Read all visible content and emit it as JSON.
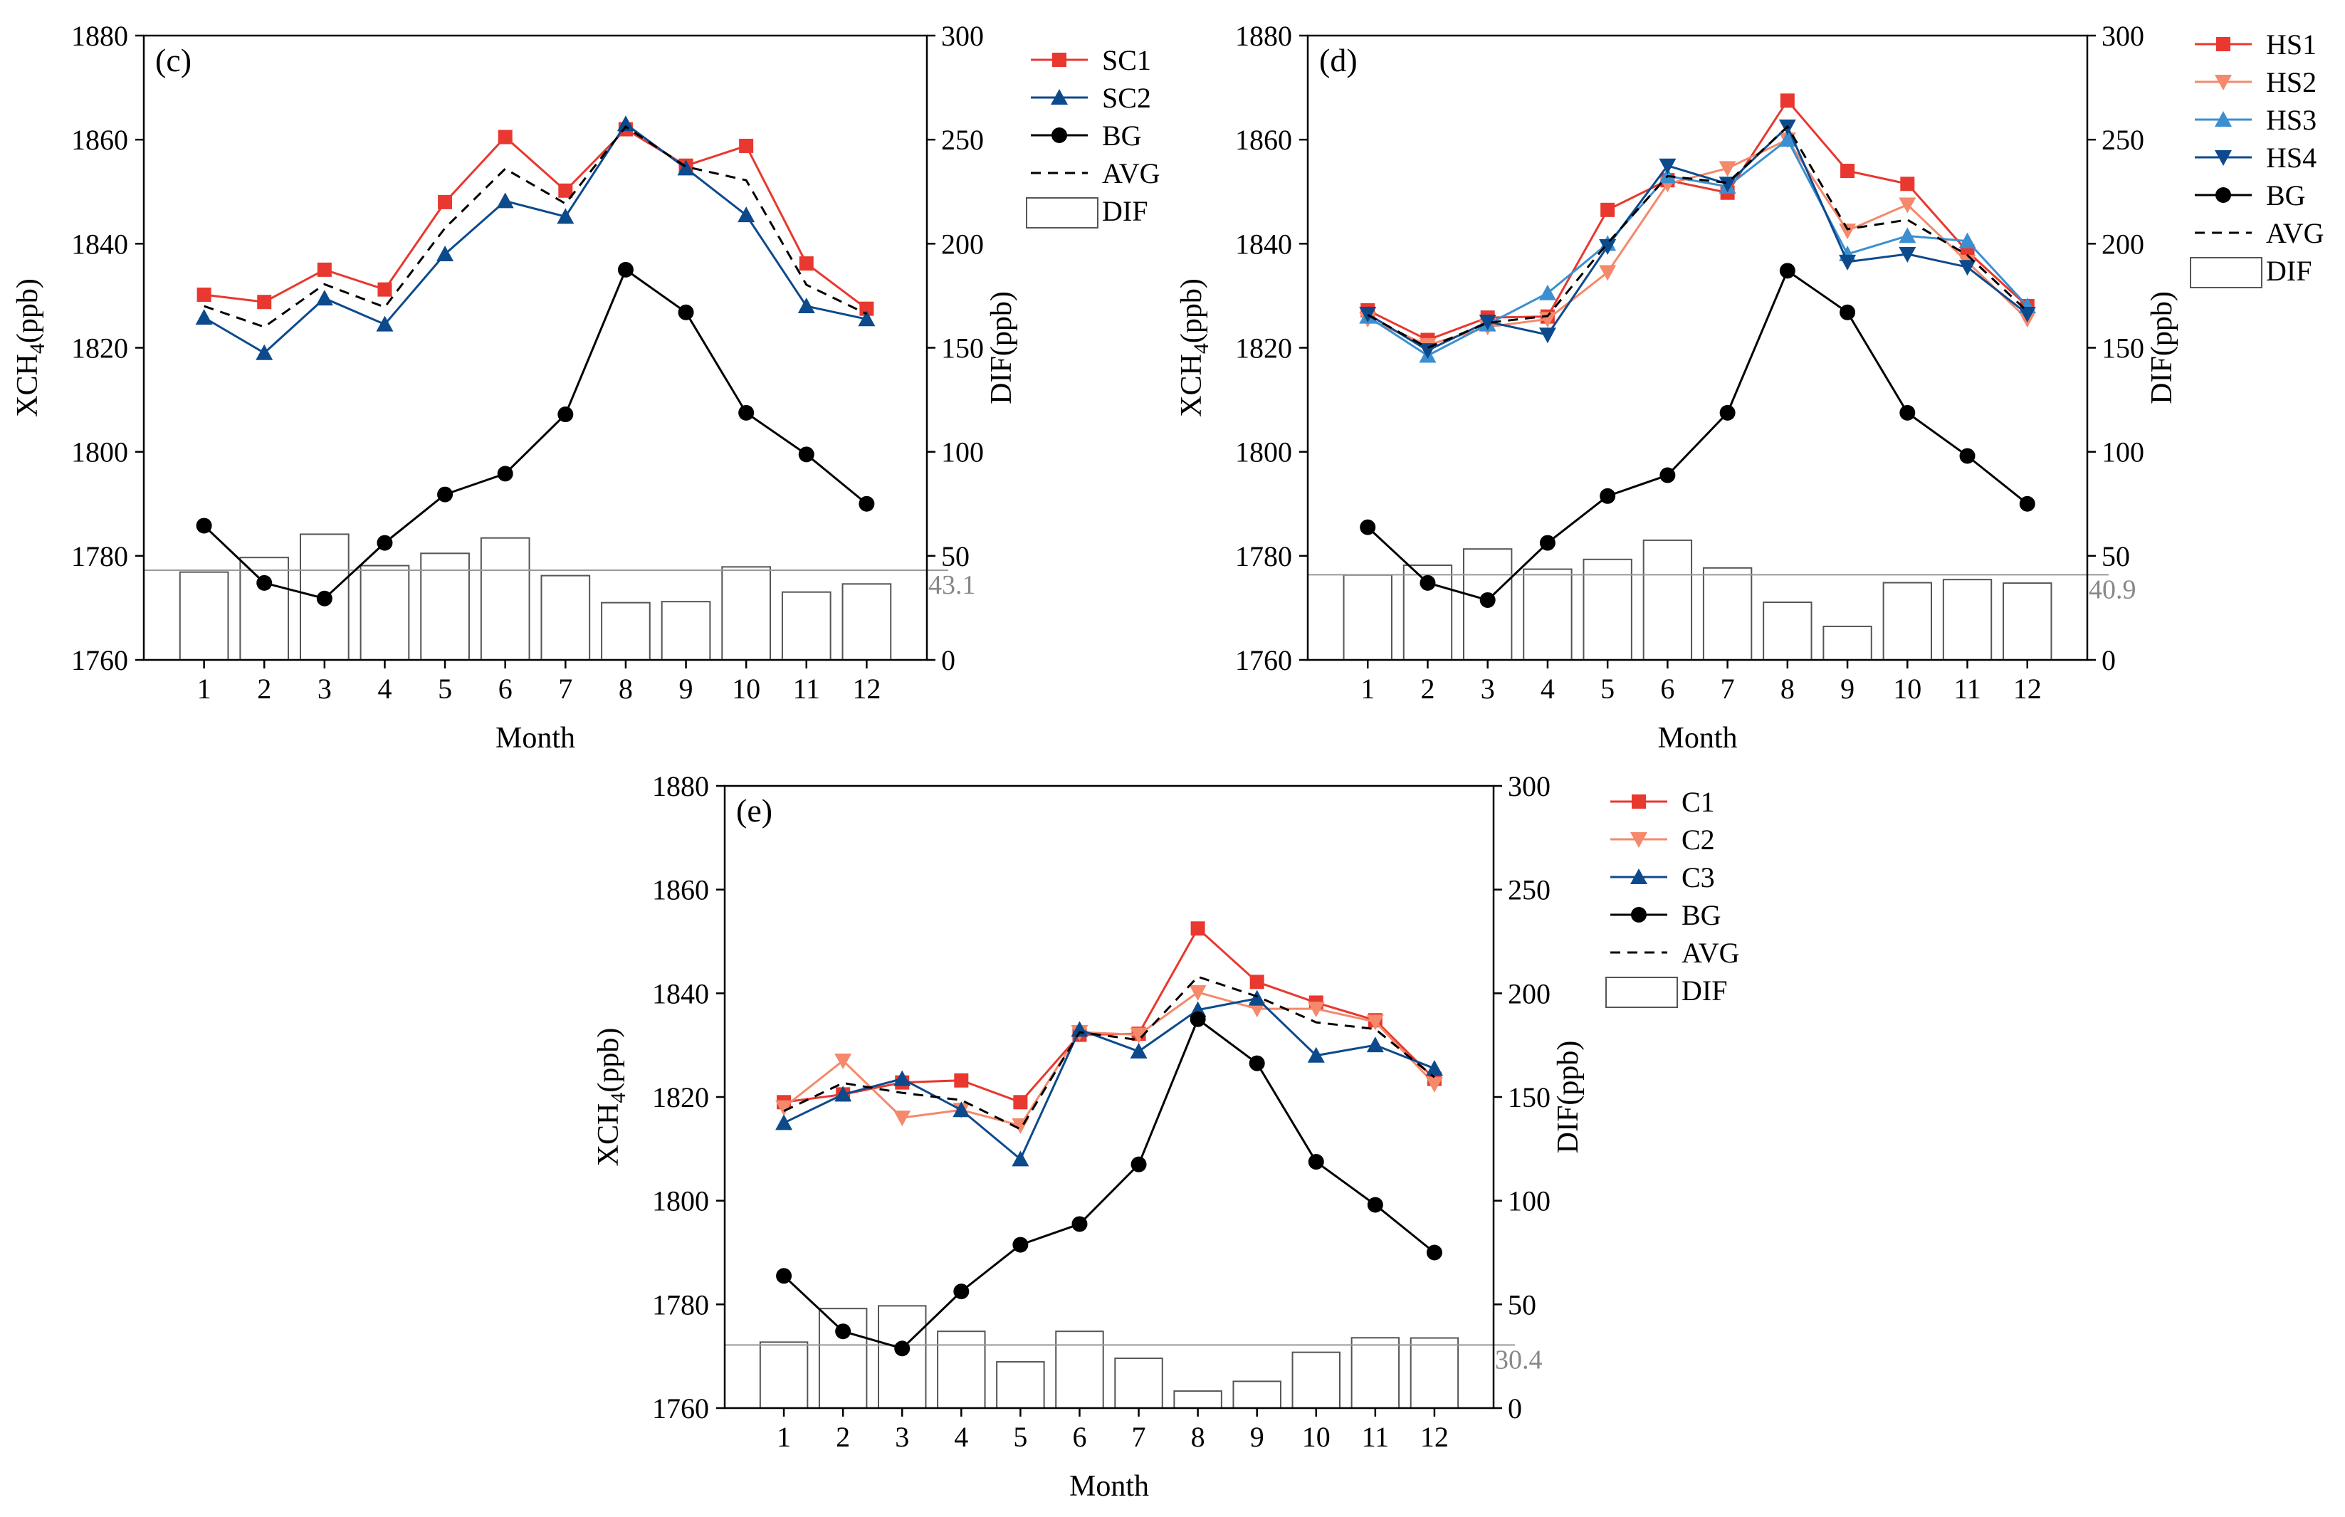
{
  "colors": {
    "red": "#e8382f",
    "salmon": "#f4896b",
    "lightblue": "#3b8fd0",
    "darkblue": "#0d4a8c",
    "black": "#000000",
    "bar_stroke": "#555555",
    "mean_line": "#999999"
  },
  "chart_data": [
    {
      "type": "line",
      "panel_label": "(c)",
      "xlabel": "Month",
      "ylabel_main": "XCH",
      "ylabel_sub": "4",
      "ylabel_unit": "(ppb)",
      "y2label": "DIF(ppb)",
      "x": [
        1,
        2,
        3,
        4,
        5,
        6,
        7,
        8,
        9,
        10,
        11,
        12
      ],
      "ylim": [
        1760,
        1880
      ],
      "yticks": [
        1760,
        1780,
        1800,
        1820,
        1840,
        1860,
        1880
      ],
      "y2lim": [
        0,
        300
      ],
      "y2ticks": [
        0,
        50,
        100,
        150,
        200,
        250,
        300
      ],
      "series": [
        {
          "name": "SC1",
          "color": "#e8382f",
          "marker": "square",
          "dash": false,
          "values": [
            1830.2,
            1828.8,
            1835.0,
            1831.2,
            1848.0,
            1860.5,
            1850.2,
            1862.0,
            1855.0,
            1858.8,
            1836.2,
            1827.5
          ]
        },
        {
          "name": "SC2",
          "color": "#0d4a8c",
          "marker": "triangle-up",
          "dash": false,
          "values": [
            1825.8,
            1819.0,
            1829.5,
            1824.5,
            1838.0,
            1848.2,
            1845.2,
            1863.0,
            1854.5,
            1845.5,
            1828.0,
            1825.5
          ]
        },
        {
          "name": "BG",
          "color": "#000000",
          "marker": "circle",
          "dash": false,
          "values": [
            1785.8,
            1774.8,
            1771.8,
            1782.5,
            1791.8,
            1795.8,
            1807.2,
            1835.0,
            1826.8,
            1807.5,
            1799.5,
            1790.0
          ]
        },
        {
          "name": "AVG",
          "color": "#000000",
          "marker": "none",
          "dash": true,
          "values": [
            1828.0,
            1824.0,
            1832.2,
            1827.8,
            1843.0,
            1854.4,
            1847.7,
            1862.5,
            1854.8,
            1852.2,
            1832.1,
            1826.5
          ]
        }
      ],
      "bars": {
        "name": "DIF",
        "values": [
          42.2,
          49.2,
          60.4,
          45.3,
          51.2,
          58.6,
          40.5,
          27.5,
          28.0,
          44.7,
          32.6,
          36.5
        ]
      },
      "mean_value": 43.1,
      "mean_label": "43.1"
    },
    {
      "type": "line",
      "panel_label": "(d)",
      "xlabel": "Month",
      "ylabel_main": "XCH",
      "ylabel_sub": "4",
      "ylabel_unit": "(ppb)",
      "y2label": "DIF(ppb)",
      "x": [
        1,
        2,
        3,
        4,
        5,
        6,
        7,
        8,
        9,
        10,
        11,
        12
      ],
      "ylim": [
        1760,
        1880
      ],
      "yticks": [
        1760,
        1780,
        1800,
        1820,
        1840,
        1860,
        1880
      ],
      "y2lim": [
        0,
        300
      ],
      "y2ticks": [
        0,
        50,
        100,
        150,
        200,
        250,
        300
      ],
      "series": [
        {
          "name": "HS1",
          "color": "#e8382f",
          "marker": "square",
          "dash": false,
          "values": [
            1827.2,
            1821.5,
            1825.8,
            1826.0,
            1846.5,
            1852.2,
            1849.8,
            1867.5,
            1854.0,
            1851.5,
            1838.5,
            1828.0
          ]
        },
        {
          "name": "HS2",
          "color": "#f4896b",
          "marker": "triangle-down",
          "dash": false,
          "values": [
            1825.5,
            1820.5,
            1824.0,
            1825.5,
            1834.5,
            1851.5,
            1854.5,
            1860.0,
            1842.5,
            1847.5,
            1836.5,
            1825.5
          ]
        },
        {
          "name": "HS3",
          "color": "#3b8fd0",
          "marker": "triangle-up",
          "dash": false,
          "values": [
            1826.0,
            1818.5,
            1824.5,
            1830.5,
            1840.0,
            1853.0,
            1851.0,
            1860.0,
            1838.0,
            1841.5,
            1840.5,
            1828.0
          ]
        },
        {
          "name": "HS4",
          "color": "#0d4a8c",
          "marker": "triangle-down",
          "dash": false,
          "values": [
            1826.5,
            1819.5,
            1825.0,
            1822.5,
            1839.5,
            1855.0,
            1851.5,
            1862.5,
            1836.5,
            1838.0,
            1835.5,
            1826.5
          ]
        },
        {
          "name": "BG",
          "color": "#000000",
          "marker": "circle",
          "dash": false,
          "values": [
            1785.5,
            1774.8,
            1771.5,
            1782.5,
            1791.5,
            1795.5,
            1807.5,
            1834.8,
            1826.8,
            1807.5,
            1799.2,
            1790.0
          ]
        },
        {
          "name": "AVG",
          "color": "#000000",
          "marker": "none",
          "dash": true,
          "values": [
            1826.3,
            1820.0,
            1824.8,
            1826.1,
            1840.1,
            1853.0,
            1851.7,
            1862.5,
            1842.8,
            1844.6,
            1837.8,
            1827.0
          ]
        }
      ],
      "bars": {
        "name": "DIF",
        "values": [
          40.8,
          45.5,
          53.3,
          43.6,
          48.3,
          57.5,
          44.2,
          27.7,
          16.1,
          37.1,
          38.6,
          36.9
        ]
      },
      "mean_value": 40.9,
      "mean_label": "40.9"
    },
    {
      "type": "line",
      "panel_label": "(e)",
      "xlabel": "Month",
      "ylabel_main": "XCH",
      "ylabel_sub": "4",
      "ylabel_unit": "(ppb)",
      "y2label": "DIF(ppb)",
      "x": [
        1,
        2,
        3,
        4,
        5,
        6,
        7,
        8,
        9,
        10,
        11,
        12
      ],
      "ylim": [
        1760,
        1880
      ],
      "yticks": [
        1760,
        1780,
        1800,
        1820,
        1840,
        1860,
        1880
      ],
      "y2lim": [
        0,
        300
      ],
      "y2ticks": [
        0,
        50,
        100,
        150,
        200,
        250,
        300
      ],
      "series": [
        {
          "name": "C1",
          "color": "#e8382f",
          "marker": "square",
          "dash": false,
          "values": [
            1819.0,
            1820.5,
            1822.8,
            1823.2,
            1819.0,
            1832.0,
            1832.2,
            1852.5,
            1842.2,
            1838.2,
            1834.8,
            1823.5
          ]
        },
        {
          "name": "C2",
          "color": "#f4896b",
          "marker": "triangle-down",
          "dash": false,
          "values": [
            1818.0,
            1827.0,
            1816.0,
            1817.5,
            1814.5,
            1832.5,
            1832.0,
            1840.2,
            1837.0,
            1837.0,
            1834.5,
            1822.5
          ]
        },
        {
          "name": "C3",
          "color": "#0d4a8c",
          "marker": "triangle-up",
          "dash": false,
          "values": [
            1815.0,
            1820.5,
            1823.5,
            1817.5,
            1808.0,
            1833.0,
            1828.8,
            1836.8,
            1839.0,
            1828.0,
            1830.0,
            1825.5
          ]
        },
        {
          "name": "BG",
          "color": "#000000",
          "marker": "circle",
          "dash": false,
          "values": [
            1785.5,
            1774.8,
            1771.5,
            1782.5,
            1791.5,
            1795.5,
            1807.0,
            1835.0,
            1826.5,
            1807.5,
            1799.2,
            1790.0
          ]
        },
        {
          "name": "AVG",
          "color": "#000000",
          "marker": "none",
          "dash": true,
          "values": [
            1817.3,
            1822.7,
            1820.8,
            1819.4,
            1813.8,
            1832.5,
            1831.0,
            1843.2,
            1839.4,
            1834.4,
            1833.1,
            1823.8
          ]
        }
      ],
      "bars": {
        "name": "DIF",
        "values": [
          31.8,
          48.0,
          49.3,
          37.0,
          22.3,
          37.0,
          24.0,
          8.2,
          12.9,
          26.9,
          33.9,
          33.8
        ]
      },
      "mean_value": 30.4,
      "mean_label": "30.4"
    }
  ]
}
